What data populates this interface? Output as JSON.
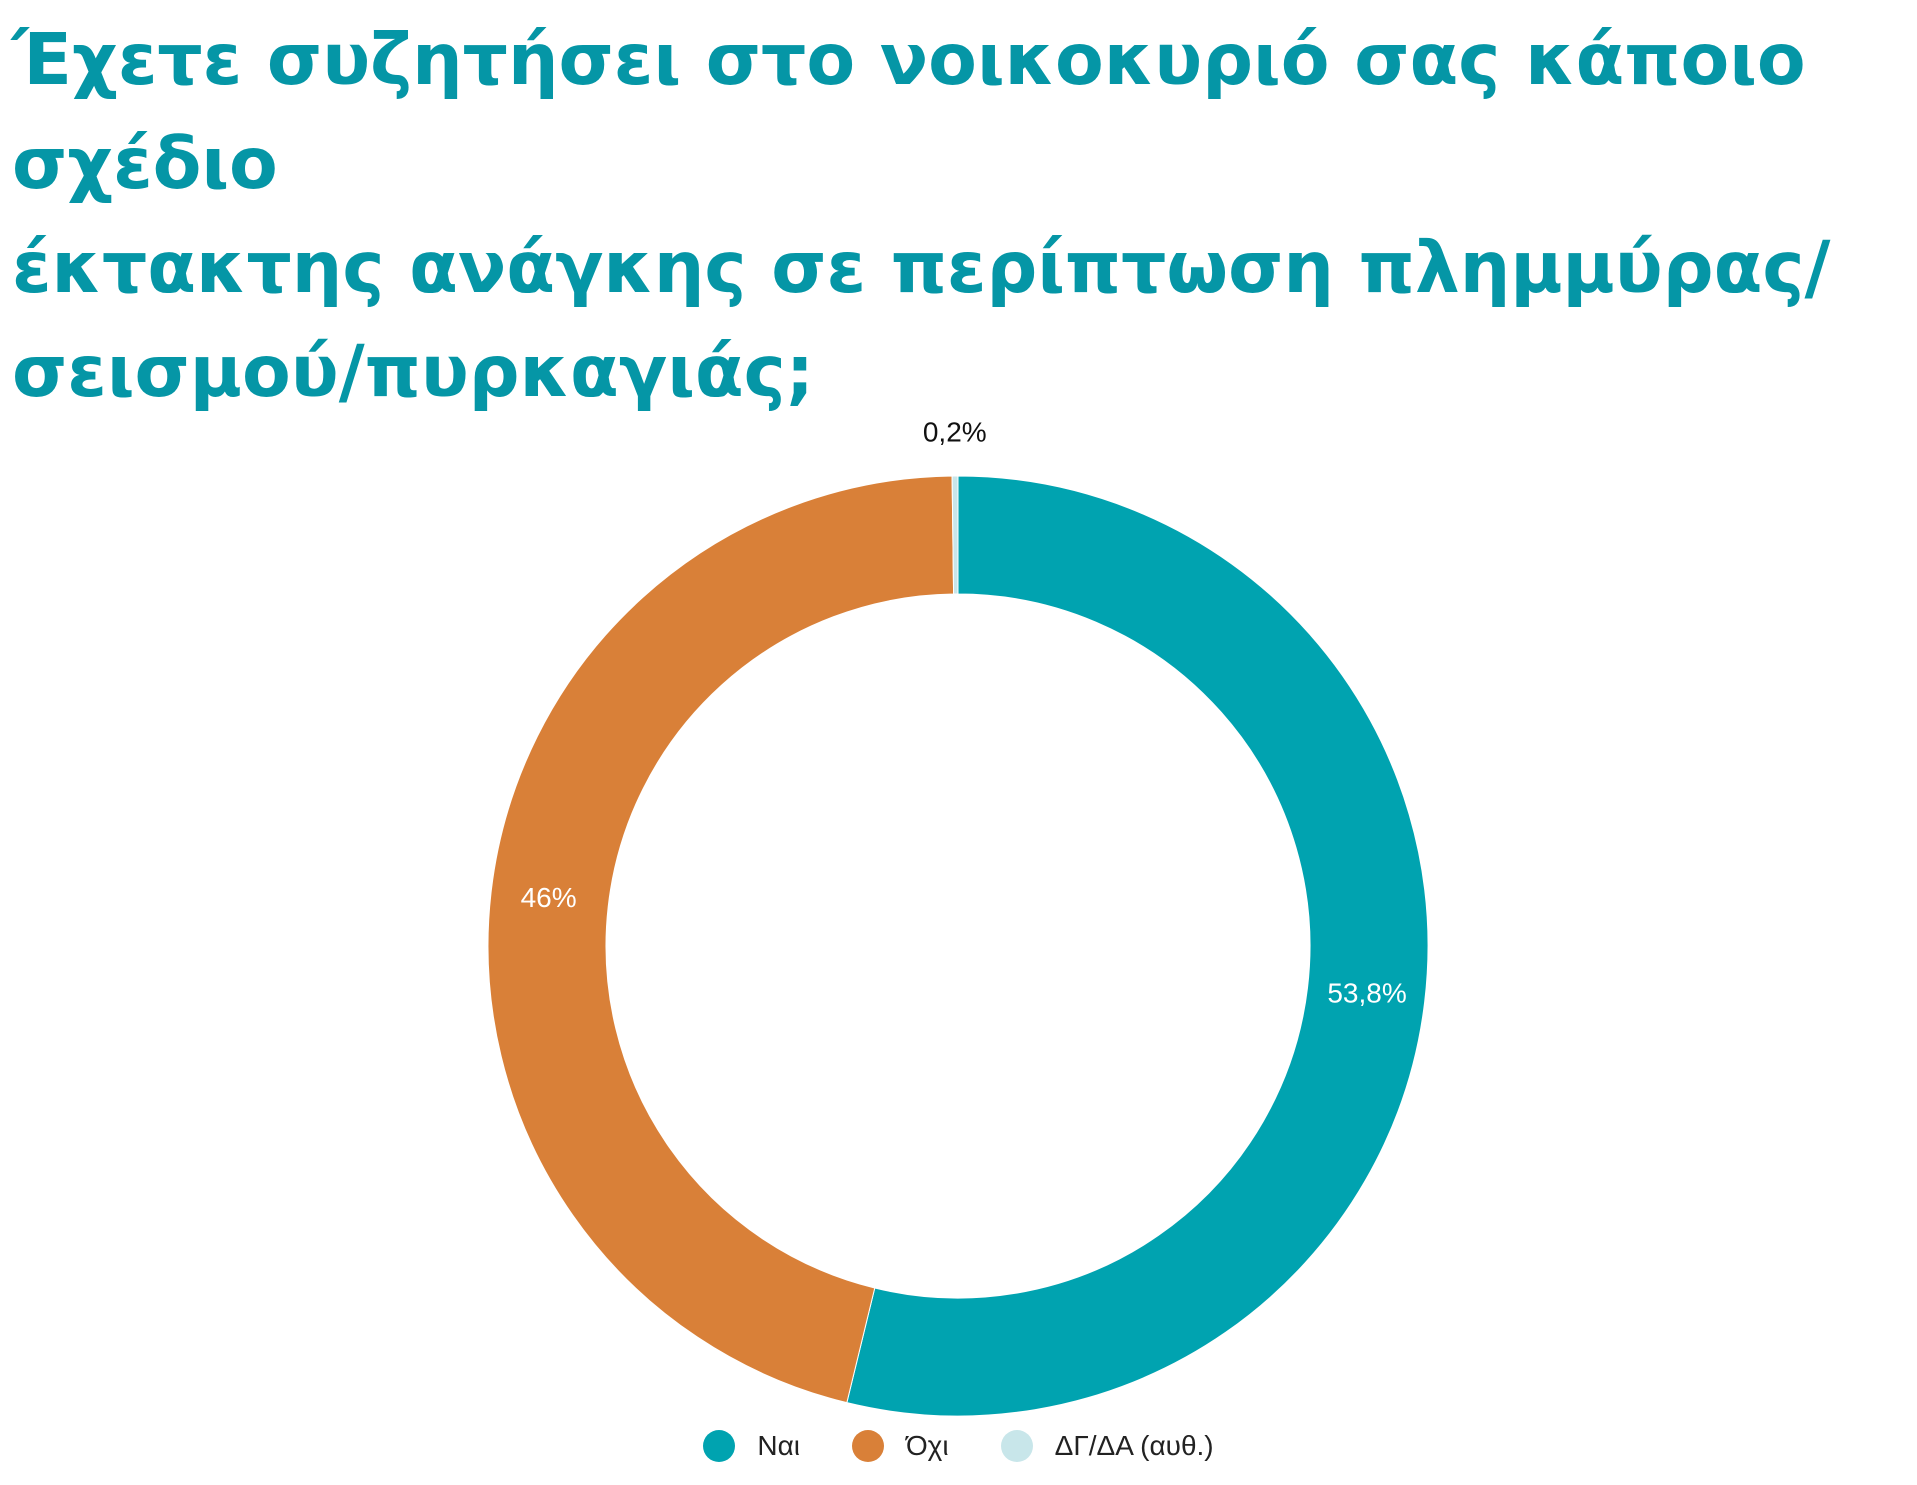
{
  "chart_data": {
    "type": "pie",
    "title": "Έχετε συζητήσει στο νοικοκυριό σας κάποιο σχέδιο\nέκτακτης ανάγκης σε περίπτωση πλημμύρας/\nσεισμού/πυρκαγιάς;",
    "series": [
      {
        "name": "Ναι",
        "value": 53.8,
        "label": "53,8%",
        "color": "#00a3b0"
      },
      {
        "name": "Όχι",
        "value": 46.0,
        "label": "46%",
        "color": "#d98038"
      },
      {
        "name": "ΔΓ/ΔΑ (αυθ.)",
        "value": 0.2,
        "label": "0,2%",
        "color": "#c8e6ea"
      }
    ],
    "donut": true,
    "legend_position": "bottom"
  },
  "colors": {
    "title": "#0596a6",
    "background": "#ffffff"
  }
}
